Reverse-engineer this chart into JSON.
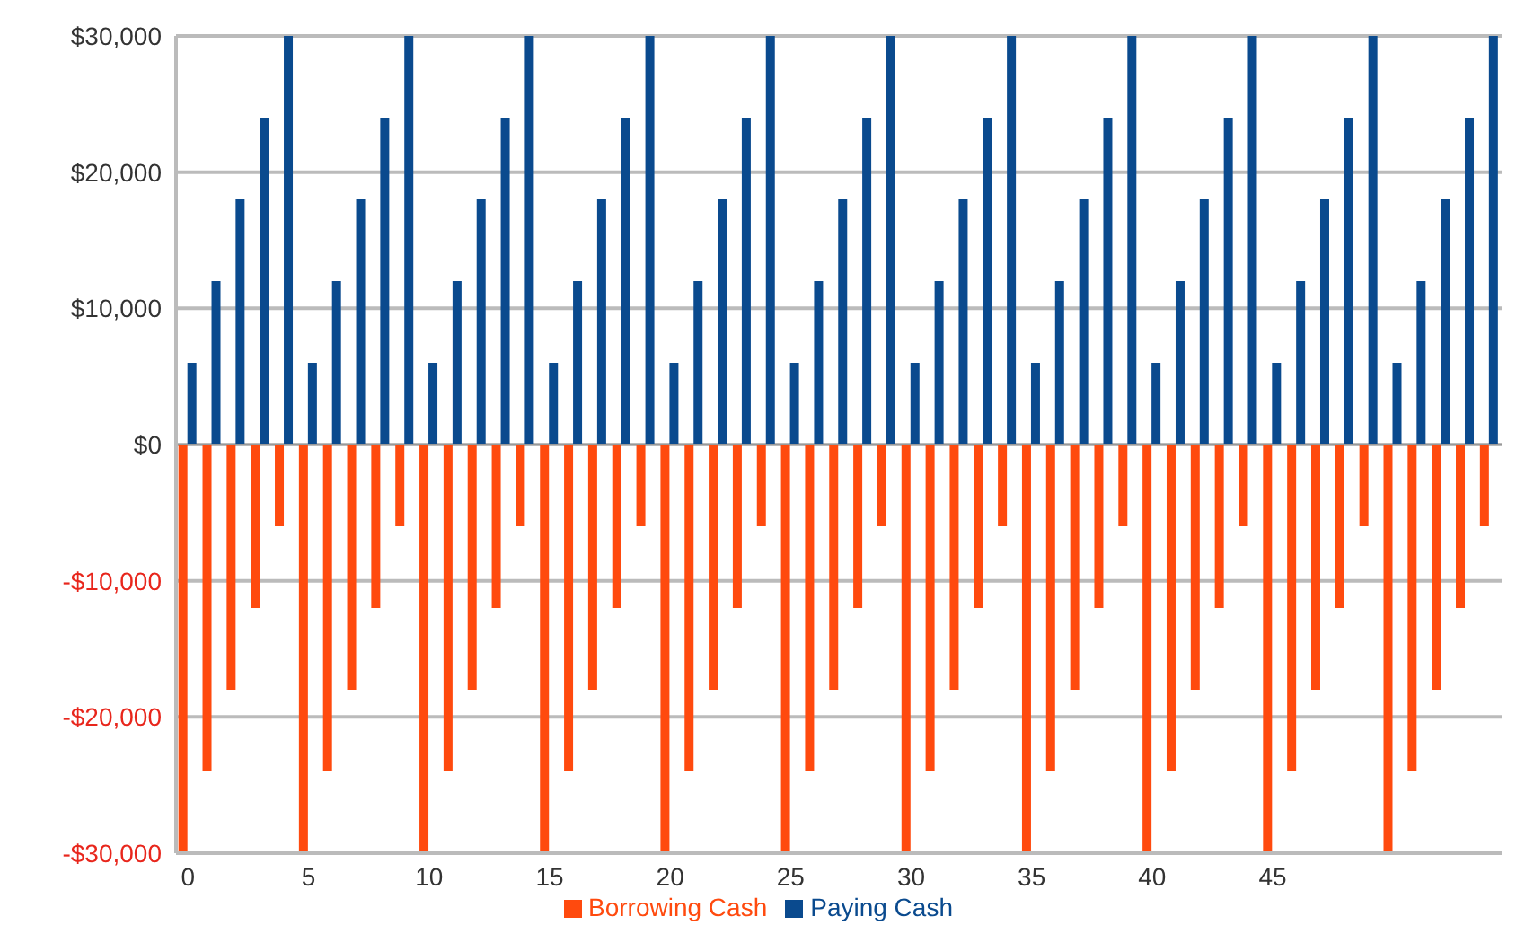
{
  "chart_data": {
    "type": "bar",
    "categories": [
      "0",
      null,
      null,
      null,
      null,
      "5",
      null,
      null,
      null,
      null,
      "10",
      null,
      null,
      null,
      null,
      "15",
      null,
      null,
      null,
      null,
      "20",
      null,
      null,
      null,
      null,
      "25",
      null,
      null,
      null,
      null,
      "30",
      null,
      null,
      null,
      null,
      "35",
      null,
      null,
      null,
      null,
      "40",
      null,
      null,
      null,
      null,
      "45",
      null,
      null,
      null,
      null,
      null,
      null,
      null,
      null,
      null
    ],
    "series": [
      {
        "name": "Borrowing Cash",
        "color": "#ff4a0e",
        "values": [
          -30000,
          -24000,
          -18000,
          -12000,
          -6000,
          -30000,
          -24000,
          -18000,
          -12000,
          -6000,
          -30000,
          -24000,
          -18000,
          -12000,
          -6000,
          -30000,
          -24000,
          -18000,
          -12000,
          -6000,
          -30000,
          -24000,
          -18000,
          -12000,
          -6000,
          -30000,
          -24000,
          -18000,
          -12000,
          -6000,
          -30000,
          -24000,
          -18000,
          -12000,
          -6000,
          -30000,
          -24000,
          -18000,
          -12000,
          -6000,
          -30000,
          -24000,
          -18000,
          -12000,
          -6000,
          -30000,
          -24000,
          -18000,
          -12000,
          -6000,
          -30000,
          -24000,
          -18000,
          -12000,
          -6000
        ]
      },
      {
        "name": "Paying Cash",
        "color": "#0a4a8e",
        "values": [
          6000,
          12000,
          18000,
          24000,
          30000,
          6000,
          12000,
          18000,
          24000,
          30000,
          6000,
          12000,
          18000,
          24000,
          30000,
          6000,
          12000,
          18000,
          24000,
          30000,
          6000,
          12000,
          18000,
          24000,
          30000,
          6000,
          12000,
          18000,
          24000,
          30000,
          6000,
          12000,
          18000,
          24000,
          30000,
          6000,
          12000,
          18000,
          24000,
          30000,
          6000,
          12000,
          18000,
          24000,
          30000,
          6000,
          12000,
          18000,
          24000,
          30000,
          6000,
          12000,
          18000,
          24000,
          30000
        ]
      }
    ],
    "ylim": [
      -30000,
      30000
    ],
    "yticks": [
      {
        "value": -30000,
        "label": "-$30,000"
      },
      {
        "value": -20000,
        "label": "-$20,000"
      },
      {
        "value": -10000,
        "label": "-$10,000"
      },
      {
        "value": 0,
        "label": "$0"
      },
      {
        "value": 10000,
        "label": "$10,000"
      },
      {
        "value": 20000,
        "label": "$20,000"
      },
      {
        "value": 30000,
        "label": "$30,000"
      }
    ],
    "grid": "y",
    "legend": "bottom"
  }
}
